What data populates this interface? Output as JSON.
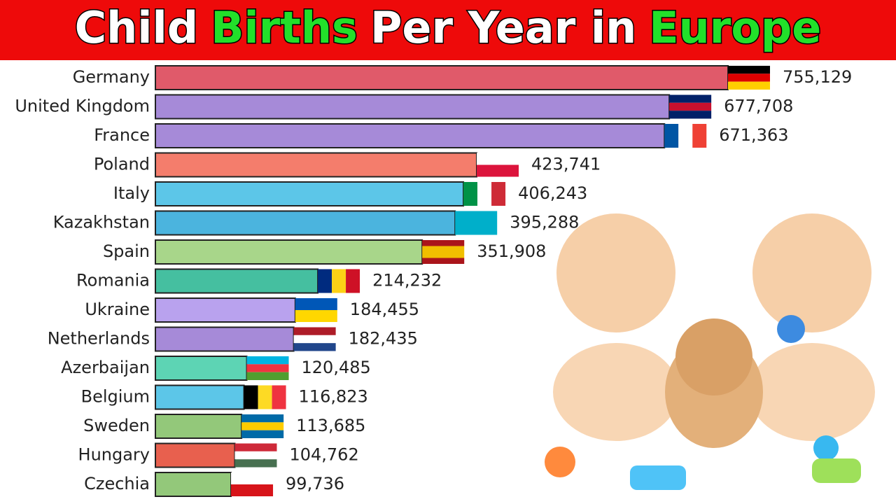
{
  "chart_data": {
    "type": "bar",
    "orientation": "horizontal",
    "title_parts": [
      {
        "text": "Child",
        "color": "#ffffff"
      },
      {
        "text": "Births",
        "color": "#22e02a"
      },
      {
        "text": "Per Year in",
        "color": "#ffffff"
      },
      {
        "text": "Europe",
        "color": "#22e02a"
      }
    ],
    "categories": [
      "Germany",
      "United Kingdom",
      "France",
      "Poland",
      "Italy",
      "Kazakhstan",
      "Spain",
      "Romania",
      "Ukraine",
      "Netherlands",
      "Azerbaijan",
      "Belgium",
      "Sweden",
      "Hungary",
      "Czechia"
    ],
    "values": [
      755129,
      677708,
      671363,
      423741,
      406243,
      395288,
      351908,
      214232,
      184455,
      182435,
      120485,
      116823,
      113685,
      104762,
      99736
    ],
    "value_labels": [
      "755,129",
      "677,708",
      "671,363",
      "423,741",
      "406,243",
      "395,288",
      "351,908",
      "214,232",
      "184,455",
      "182,435",
      "120,485",
      "116,823",
      "113,685",
      "104,762",
      "99,736"
    ],
    "colors": [
      "#e05a6a",
      "#a68ad8",
      "#a68ad8",
      "#f47d6c",
      "#5cc6e8",
      "#4bb4de",
      "#a8d68a",
      "#45bfa0",
      "#b9a2ee",
      "#a68ad8",
      "#5dd4b4",
      "#5cc6e8",
      "#93c87a",
      "#e8604e",
      "#93c87a"
    ]
  }
}
